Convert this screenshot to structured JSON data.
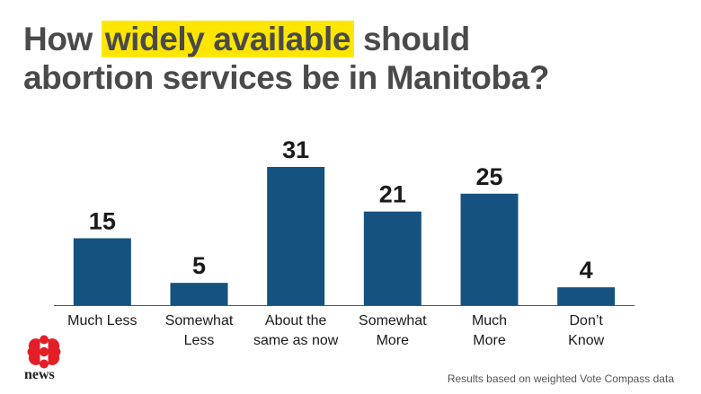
{
  "title": {
    "prefix": "How ",
    "highlight": "widely available",
    "suffix_line1": " should",
    "line2": "abortion services be in Manitoba?"
  },
  "colors": {
    "bar": "#16527f",
    "highlight": "#ffe600",
    "title_text": "#4a4a4a",
    "logo_red": "#e41e26"
  },
  "chart_data": {
    "type": "bar",
    "title": "How widely available should abortion services be in Manitoba?",
    "categories": [
      [
        "Much Less"
      ],
      [
        "Somewhat",
        "Less"
      ],
      [
        "About the",
        "same as now"
      ],
      [
        "Somewhat",
        "More"
      ],
      [
        "Much",
        "More"
      ],
      [
        "Don’t",
        "Know"
      ]
    ],
    "values": [
      15,
      5,
      31,
      21,
      25,
      4
    ],
    "data_labels": true,
    "xlabel": "",
    "ylabel": "",
    "ylim": [
      0,
      31
    ],
    "grid": false,
    "legend": "none"
  },
  "footnote": "Results based on weighted Vote Compass data",
  "logo": {
    "icon": "cbc-gem-icon",
    "word": "news"
  }
}
